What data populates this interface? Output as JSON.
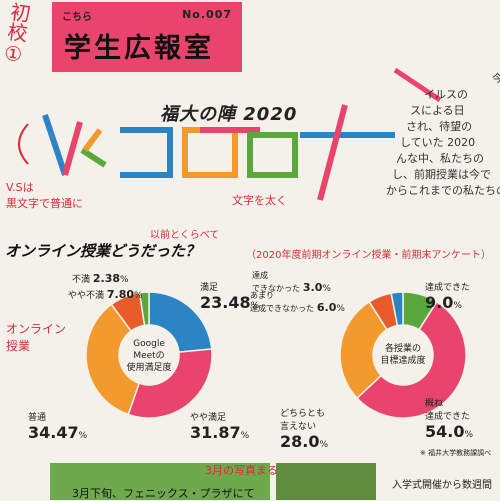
{
  "handwritten": {
    "top_left_note": "初校①",
    "vs_note": "V.Sは\n黒文字で普通に",
    "text_note": "文字を太く",
    "mae_note": "以前とくらべて",
    "survey_note": "（2020年度前期オンライン授業・前期末アンケート）",
    "online_note": "オンライン授業",
    "march_note": "3月の写真まる",
    "vs_bracket": "（"
  },
  "header": {
    "kochira": "こちら",
    "title": "学生広報室",
    "number": "No.007"
  },
  "subtitle": "福大の陣 2020",
  "big_title": {
    "vs": "VS",
    "korona": "コロナ"
  },
  "right_column": {
    "lines": [
      "今年",
      "イルスの",
      "スによる日",
      "され、待望の",
      "していた 2020",
      "んな中、私たちの",
      "し、前期授業は今で",
      "からこれまでの私たちの"
    ]
  },
  "section_title": "オンライン授業どうだった？",
  "chart_data": [
    {
      "type": "pie",
      "title": "Google Meetの使用満足度",
      "slices": [
        {
          "label": "満足",
          "value": 23.48
        },
        {
          "label": "やや満足",
          "value": 31.87
        },
        {
          "label": "普通",
          "value": 34.47
        },
        {
          "label": "やや不満",
          "value": 7.8
        },
        {
          "label": "不満",
          "value": 2.38
        }
      ],
      "colors": [
        "#2b85c5",
        "#e8446c",
        "#f39a2e",
        "#e85b2b",
        "#5aa83c"
      ]
    },
    {
      "type": "pie",
      "title": "各授業の目標達成度",
      "slices": [
        {
          "label": "達成できた",
          "value": 9.0
        },
        {
          "label": "概ね達成できた",
          "value": 54.0
        },
        {
          "label": "どちらとも言えない",
          "value": 28.0
        },
        {
          "label": "あまり達成できなかった",
          "value": 6.0
        },
        {
          "label": "達成できなかった",
          "value": 3.0
        }
      ],
      "colors": [
        "#5aa83c",
        "#e8446c",
        "#f39a2e",
        "#e85b2b",
        "#2b85c5"
      ]
    }
  ],
  "chart1_labels": {
    "center": "Google\nMeetの\n使用満足度",
    "manzoku": "満足",
    "manzoku_v": "23.48",
    "yaya_manzoku": "やや満足",
    "yaya_manzoku_v": "31.87",
    "futsu": "普通",
    "futsu_v": "34.47",
    "yaya_fuman": "やや不満",
    "yaya_fuman_v": "7.80",
    "fuman": "不満",
    "fuman_v": "2.38",
    "unit": "%"
  },
  "chart2_labels": {
    "center": "各授業の\n目標達成度",
    "tassei": "達成できた",
    "tassei_v": "9.0",
    "ooomune": "概ね\n達成できた",
    "ooomune_v": "54.0",
    "dochira": "どちらとも\n言えない",
    "dochira_v": "28.0",
    "amari": "あまり\n達成できなかった",
    "amari_v": "6.0",
    "dekinai": "達成\nできなかった",
    "dekinai_v": "3.0",
    "unit": "%",
    "source": "※ 福井大学教務課調べ"
  },
  "bottom": {
    "caption": "3月下旬、フェニックス・プラザにて",
    "caption2": "入学式開催から数週間"
  }
}
